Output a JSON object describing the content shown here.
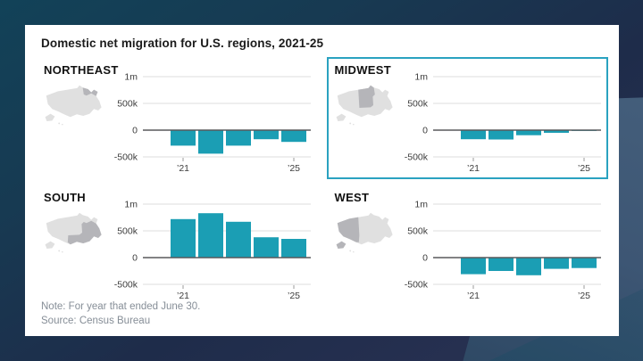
{
  "card": {
    "title": "Domestic net migration for U.S. regions, 2021-25",
    "note": "Note: For year that ended June 30.",
    "source": "Source: Census Bureau"
  },
  "colors": {
    "bar": "#1b9eb4",
    "highlight_border": "#2aa2c0",
    "zero_line": "#58595b",
    "gridline": "#dcdcdc",
    "tick": "#9b9b9b",
    "axis_text": "#3d3d3d",
    "map_base": "#e0e0e0",
    "map_region": "#b5b5b9",
    "card_bg": "#ffffff"
  },
  "axis": {
    "y_tick_labels": [
      "1m",
      "500k",
      "0",
      "-500k"
    ],
    "y_tick_values": [
      1000000,
      500000,
      0,
      -500000
    ],
    "y_min": -500000,
    "y_max": 1000000,
    "x_tick_labels": [
      "’21",
      "’25"
    ],
    "x_tick_indices": [
      0,
      4
    ],
    "grid": true
  },
  "chart_data": [
    {
      "type": "bar",
      "region": "NORTHEAST",
      "highlighted": false,
      "categories": [
        2021,
        2022,
        2023,
        2024,
        2025
      ],
      "values": [
        -290000,
        -440000,
        -290000,
        -170000,
        -220000
      ]
    },
    {
      "type": "bar",
      "region": "MIDWEST",
      "highlighted": true,
      "categories": [
        2021,
        2022,
        2023,
        2024,
        2025
      ],
      "values": [
        -170000,
        -175000,
        -95000,
        -50000,
        -15000
      ]
    },
    {
      "type": "bar",
      "region": "SOUTH",
      "highlighted": false,
      "categories": [
        2021,
        2022,
        2023,
        2024,
        2025
      ],
      "values": [
        720000,
        830000,
        670000,
        380000,
        350000
      ]
    },
    {
      "type": "bar",
      "region": "WEST",
      "highlighted": false,
      "categories": [
        2021,
        2022,
        2023,
        2024,
        2025
      ],
      "values": [
        -310000,
        -250000,
        -330000,
        -210000,
        -195000
      ]
    }
  ]
}
